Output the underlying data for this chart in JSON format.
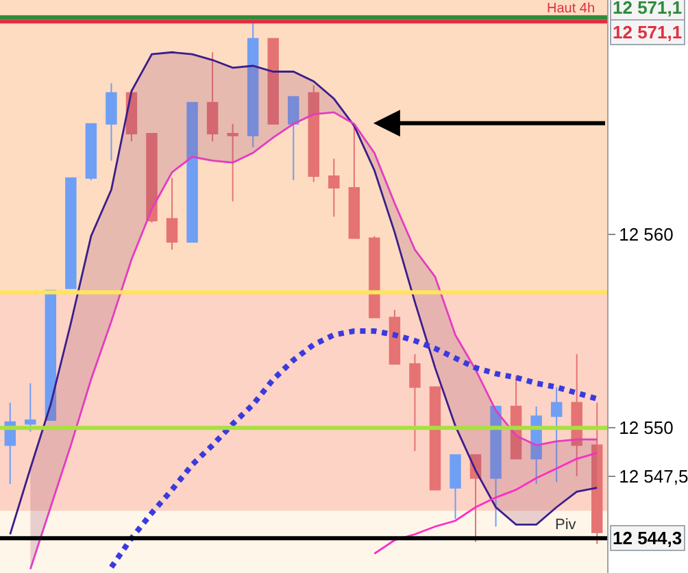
{
  "chart_data": {
    "type": "candlestick",
    "categories": [
      null,
      null,
      null,
      null,
      null,
      null,
      null,
      null,
      null,
      null,
      null,
      null,
      null,
      null,
      null,
      null,
      null,
      null,
      null,
      null,
      null,
      null,
      null,
      null,
      null,
      null,
      null,
      null,
      null,
      null
    ],
    "ohlc": [
      [
        12549.1,
        12551.3,
        12547.1,
        12550.3
      ],
      [
        12550.2,
        12552.3,
        12549.8,
        12550.4
      ],
      [
        12550.4,
        12557.1,
        12550.4,
        12557.1
      ],
      [
        12557.2,
        12562.9,
        12557.2,
        12562.9
      ],
      [
        12562.9,
        12565.7,
        12562.8,
        12565.7
      ],
      [
        12565.7,
        12567.8,
        12563.8,
        12567.3
      ],
      [
        12567.3,
        12567.3,
        12564.8,
        12565.2
      ],
      [
        12565.2,
        12565.2,
        12560.6,
        12560.7
      ],
      [
        12560.8,
        12562.9,
        12559.2,
        12559.6
      ],
      [
        12559.6,
        12566.8,
        12559.6,
        12566.8
      ],
      [
        12566.8,
        12569.4,
        12564.8,
        12565.2
      ],
      [
        12565.2,
        12565.7,
        12561.7,
        12565.1
      ],
      [
        12565.1,
        12570.9,
        12564.5,
        12570.1
      ],
      [
        12570.1,
        12570.1,
        12565.7,
        12565.7
      ],
      [
        12565.7,
        12567.1,
        12562.8,
        12567.1
      ],
      [
        12567.3,
        12567.7,
        12562.7,
        12563.0
      ],
      [
        12563.0,
        12563.9,
        12560.9,
        12562.4
      ],
      [
        12562.4,
        12565.7,
        12559.8,
        12559.8
      ],
      [
        12559.8,
        12559.9,
        12555.7,
        12555.7
      ],
      [
        12555.7,
        12556.1,
        12553.3,
        12553.3
      ],
      [
        12553.3,
        12553.8,
        12548.8,
        12552.1
      ],
      [
        12552.1,
        12552.1,
        12546.8,
        12546.8
      ],
      [
        12546.9,
        12548.6,
        12545.3,
        12548.6
      ],
      [
        12548.6,
        12548.6,
        12544.1,
        12547.4
      ],
      [
        12547.4,
        12551.1,
        12544.9,
        12551.1
      ],
      [
        12551.1,
        12552.7,
        12548.4,
        12548.4
      ],
      [
        12548.4,
        12551.1,
        12547.1,
        12550.6
      ],
      [
        12550.6,
        12552.1,
        12547.2,
        12551.3
      ],
      [
        12551.3,
        12553.8,
        12547.5,
        12549.1
      ],
      [
        12549.1,
        12551.3,
        12544.0,
        12544.6
      ]
    ],
    "colors": [
      "#6f9ff5",
      "#6f9ff5",
      "#6f9ff5",
      "#6f9ff5",
      "#6f9ff5",
      "#6f9ff5",
      "#e57373",
      "#e57373",
      "#e57373",
      "#6f9ff5",
      "#e57373",
      "#e57373",
      "#6f9ff5",
      "#e57373",
      "#6f9ff5",
      "#e57373",
      "#e57373",
      "#e57373",
      "#e57373",
      "#e57373",
      "#e57373",
      "#e57373",
      "#6f9ff5",
      "#e57373",
      "#6f9ff5",
      "#e57373",
      "#6f9ff5",
      "#6f9ff5",
      "#e57373",
      "#e57373"
    ],
    "series": [
      {
        "type": "line",
        "color": "#3b1e8c",
        "line_style": "solid",
        "values": [
          12544.5,
          12547.9,
          12551.2,
          12555.4,
          12559.9,
          12562.3,
          12567.4,
          12569.3,
          12569.4,
          12569.3,
          12569.0,
          12568.6,
          12568.7,
          12568.4,
          12568.4,
          12567.9,
          12567.0,
          12565.6,
          12563.3,
          12560.1,
          12556.5,
          12553.1,
          12550.1,
          12547.8,
          12545.9,
          12545.0,
          12545.0,
          12545.9,
          12546.7,
          12546.9
        ],
        "upper": [
          null,
          12547.9,
          12551.2,
          12555.4,
          12559.9,
          12562.3,
          12567.4,
          12569.3,
          12569.4,
          12569.3,
          12569.0,
          12568.6,
          12568.7,
          12568.4,
          12568.4,
          12567.9,
          12567.0,
          12565.6,
          12563.3,
          12560.1,
          12556.5,
          12553.1,
          12550.1,
          12547.8,
          12545.9,
          12545.0,
          12545.0,
          12545.9,
          12546.7,
          12546.9
        ],
        "lower": [
          null,
          12542.7,
          12545.9,
          12549.1,
          12552.5,
          12555.5,
          12558.7,
          12561.3,
          12563.2,
          12564.0,
          12563.8,
          12563.7,
          12564.2,
          12565.0,
          12565.7,
          12566.2,
          12566.3,
          12565.7,
          12564.2,
          12561.6,
          12559.2,
          12557.8,
          12554.8,
          12553.0,
          12550.9,
          12549.6,
          12549.1,
          12549.3,
          12549.4,
          12549.4
        ]
      },
      {
        "type": "line",
        "color": "#e43cc0",
        "line_style": "solid",
        "values": [
          null,
          12542.7,
          12545.9,
          12549.1,
          12552.5,
          12555.5,
          12558.7,
          12561.3,
          12563.2,
          12564.0,
          12563.8,
          12563.7,
          12564.2,
          12565.0,
          12565.7,
          12566.2,
          12566.3,
          12565.7,
          12564.2,
          12561.6,
          12559.2,
          12557.8,
          12554.8,
          12553.0,
          12550.9,
          12549.6,
          12549.1,
          12549.3,
          12549.4,
          12549.4
        ]
      },
      {
        "type": "line",
        "color": "#3a3ae0",
        "line_style": "dotted",
        "values": [
          null,
          null,
          null,
          null,
          null,
          12542.8,
          12544.3,
          12545.6,
          12546.8,
          12548.1,
          12549.1,
          12550.2,
          12551.2,
          12552.5,
          12553.5,
          12554.3,
          12554.8,
          12555.0,
          12555.0,
          12554.8,
          12554.5,
          12554.1,
          12553.6,
          12553.1,
          12552.8,
          12552.6,
          12552.3,
          12552.1,
          12551.8,
          12551.5
        ]
      },
      {
        "type": "line",
        "color": "#ff2cc4",
        "line_style": "solid",
        "values": [
          null,
          null,
          null,
          null,
          null,
          null,
          null,
          null,
          null,
          null,
          null,
          null,
          null,
          null,
          null,
          null,
          null,
          null,
          12543.5,
          12544.2,
          12544.5,
          12544.9,
          12545.2,
          12545.9,
          12546.4,
          12546.8,
          12547.4,
          12547.9,
          12548.4,
          12548.7
        ]
      }
    ],
    "ylim": [
      12542.5,
      12572.1
    ],
    "yticks": [
      {
        "value": 12560,
        "label": "12 560"
      },
      {
        "value": 12550,
        "label": "12 550"
      },
      {
        "value": 12547.5,
        "label": "12 547,5"
      }
    ],
    "ref_lines": [
      {
        "axis": "y",
        "value": 12571.1,
        "label": "12 571,1",
        "color": "#2e8b3a",
        "line_style": "solid"
      },
      {
        "axis": "y",
        "value": 12571.1,
        "label": "12 571,1",
        "color": "#e03040",
        "line_style": "solid"
      },
      {
        "axis": "y",
        "value": 12557.0,
        "color": "#ffe45c",
        "line_style": "solid"
      },
      {
        "axis": "y",
        "value": 12550.0,
        "color": "#a8e040",
        "line_style": "solid"
      },
      {
        "axis": "y",
        "value": 12544.3,
        "label": "12 544,3",
        "color": "#000000",
        "line_style": "solid"
      }
    ],
    "bands": [
      {
        "axis": "y",
        "from": 12557.0,
        "to": 12572.1,
        "color": "#fddcc2"
      },
      {
        "axis": "y",
        "from": 12545.7,
        "to": 12557.0,
        "color": "#fdd3c5"
      },
      {
        "axis": "y",
        "from": 12542.5,
        "to": 12545.7,
        "color": "#fff6ea"
      }
    ],
    "annotations": [
      {
        "text": "Haut 4h",
        "y": 12571.1
      },
      {
        "text": "Piv",
        "y": 12544.3
      }
    ],
    "grid": false
  }
}
